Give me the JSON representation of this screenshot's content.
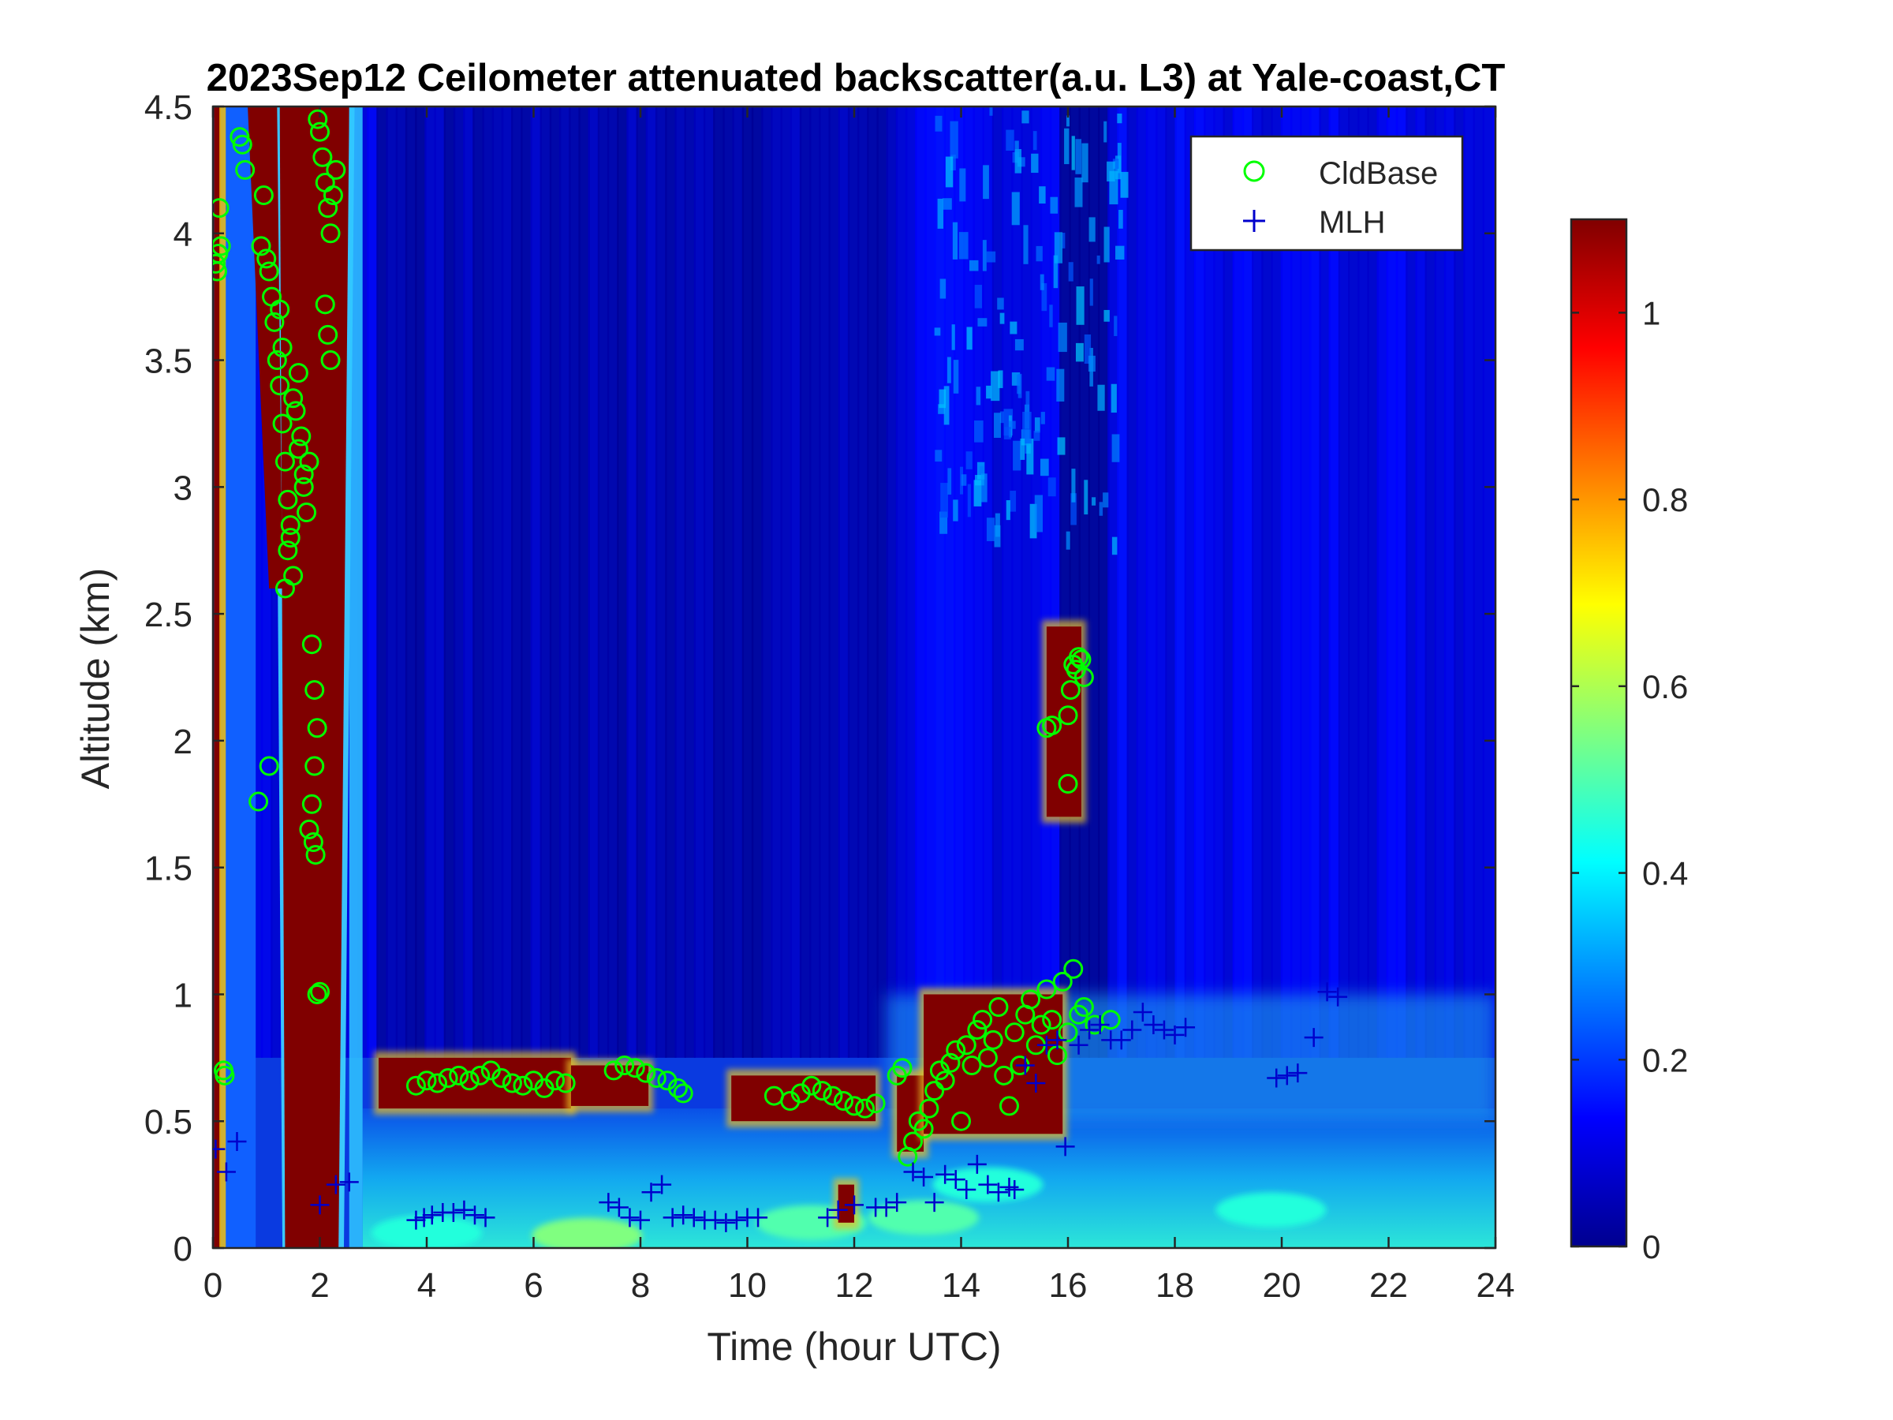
{
  "chart_data": {
    "type": "heatmap",
    "title": "2023Sep12 Ceilometer attenuated backscatter(a.u. L3) at Yale-coast,CT",
    "xlabel": "Time (hour UTC)",
    "ylabel": "Altitude (km)",
    "xlim": [
      0,
      24
    ],
    "ylim": [
      0,
      4.5
    ],
    "xticks": [
      0,
      2,
      4,
      6,
      8,
      10,
      12,
      14,
      16,
      18,
      20,
      22,
      24
    ],
    "xtick_labels": [
      "0",
      "2",
      "4",
      "6",
      "8",
      "10",
      "12",
      "14",
      "16",
      "18",
      "20",
      "22",
      "24"
    ],
    "yticks": [
      0,
      0.5,
      1,
      1.5,
      2,
      2.5,
      3,
      3.5,
      4,
      4.5
    ],
    "ytick_labels": [
      "0",
      "0.5",
      "1",
      "1.5",
      "2",
      "2.5",
      "3",
      "3.5",
      "4",
      "4.5"
    ],
    "colorbar": {
      "colormap": "jet",
      "clim": [
        0,
        1.1
      ],
      "ticks": [
        0,
        0.2,
        0.4,
        0.6,
        0.8,
        1
      ],
      "tick_labels": [
        "0",
        "0.2",
        "0.4",
        "0.6",
        "0.8",
        "1"
      ]
    },
    "legend": {
      "placement": "top-right",
      "entries": [
        {
          "label": "CldBase",
          "marker": "circle",
          "color": "#00ff00"
        },
        {
          "label": "MLH",
          "marker": "plus",
          "color": "#0000cc"
        }
      ]
    },
    "heatmap_features": [
      {
        "desc": "background aloft",
        "x": [
          0,
          24
        ],
        "y": [
          1.2,
          4.5
        ],
        "value": 0.12
      },
      {
        "desc": "clear night column",
        "x": [
          3,
          12.5
        ],
        "y": [
          0.8,
          4.5
        ],
        "value": 0.04
      },
      {
        "desc": "boundary layer",
        "x": [
          2.8,
          24
        ],
        "y": [
          0,
          0.55
        ],
        "value": 0.35
      },
      {
        "desc": "thick cloud column",
        "x": [
          1.2,
          2.6
        ],
        "y": [
          0,
          4.5
        ],
        "value": 1.1
      },
      {
        "desc": "edge cloud column",
        "x": [
          0,
          0.2
        ],
        "y": [
          0,
          4.5
        ],
        "value": 1.1
      },
      {
        "desc": "cloud layer",
        "x": [
          3.1,
          6.7
        ],
        "y": [
          0.55,
          0.75
        ],
        "value": 1.1
      },
      {
        "desc": "cloud layer",
        "x": [
          6.7,
          8.1
        ],
        "y": [
          0.55,
          0.7
        ],
        "value": 1.0
      },
      {
        "desc": "cloud layer",
        "x": [
          9.7,
          12.4
        ],
        "y": [
          0.5,
          0.7
        ],
        "value": 1.0
      },
      {
        "desc": "cloud layer",
        "x": [
          13.2,
          15.8
        ],
        "y": [
          0.4,
          1.05
        ],
        "value": 1.0
      },
      {
        "desc": "cloud layer",
        "x": [
          15.6,
          16.2
        ],
        "y": [
          1.7,
          2.45
        ],
        "value": 1.0
      }
    ],
    "series": [
      {
        "name": "CldBase",
        "marker": "circle",
        "color": "#00ff00",
        "x": [
          0.05,
          0.1,
          0.15,
          0.12,
          0.08,
          0.2,
          0.22,
          0.55,
          0.6,
          0.5,
          0.9,
          0.95,
          1.0,
          1.05,
          1.1,
          1.15,
          1.2,
          1.25,
          1.3,
          1.35,
          1.4,
          1.45,
          1.5,
          1.55,
          1.6,
          1.65,
          1.7,
          1.75,
          1.8,
          1.35,
          1.4,
          1.5,
          1.6,
          1.7,
          1.45,
          1.3,
          1.25,
          1.85,
          1.9,
          1.95,
          1.9,
          1.85,
          1.8,
          1.88,
          1.92,
          1.96,
          2.0,
          2.05,
          2.1,
          2.15,
          2.2,
          2.25,
          2.3,
          2.15,
          2.1,
          2.2,
          0.85,
          1.05,
          1.95,
          2.0,
          3.8,
          4.0,
          4.2,
          4.4,
          4.6,
          4.8,
          5.0,
          5.2,
          5.4,
          5.6,
          5.8,
          6.0,
          6.2,
          6.4,
          6.6,
          7.5,
          7.7,
          7.9,
          8.1,
          8.3,
          8.5,
          8.7,
          8.8,
          10.5,
          10.8,
          11.0,
          11.2,
          11.4,
          11.6,
          11.8,
          12.0,
          12.2,
          12.4,
          12.8,
          12.9,
          13.0,
          13.1,
          13.2,
          13.3,
          13.4,
          13.5,
          13.6,
          13.7,
          13.8,
          13.9,
          14.0,
          14.1,
          14.2,
          14.3,
          14.4,
          14.5,
          14.6,
          14.7,
          14.8,
          14.9,
          15.0,
          15.1,
          15.2,
          15.3,
          15.4,
          15.5,
          15.6,
          15.7,
          15.8,
          15.9,
          16.0,
          16.1,
          16.2,
          16.3,
          16.5,
          16.8,
          15.6,
          15.7,
          16.0,
          16.05,
          16.1,
          16.15,
          16.2,
          16.25,
          16.3,
          16.0
        ],
        "y": [
          3.88,
          3.92,
          3.95,
          4.1,
          3.85,
          0.7,
          0.68,
          4.35,
          4.25,
          4.38,
          3.95,
          4.15,
          3.9,
          3.85,
          3.75,
          3.65,
          3.5,
          3.4,
          3.25,
          3.1,
          2.95,
          2.8,
          2.65,
          3.3,
          3.45,
          3.2,
          3.05,
          2.9,
          3.1,
          2.6,
          2.75,
          3.35,
          3.15,
          3.0,
          2.85,
          3.55,
          3.7,
          2.38,
          2.2,
          2.05,
          1.9,
          1.75,
          1.65,
          1.6,
          1.55,
          4.45,
          4.4,
          4.3,
          4.2,
          4.1,
          4.0,
          4.15,
          4.25,
          3.6,
          3.72,
          3.5,
          1.76,
          1.9,
          1.0,
          1.01,
          0.64,
          0.66,
          0.65,
          0.67,
          0.68,
          0.66,
          0.68,
          0.7,
          0.67,
          0.65,
          0.64,
          0.66,
          0.63,
          0.66,
          0.65,
          0.7,
          0.72,
          0.71,
          0.69,
          0.67,
          0.66,
          0.63,
          0.61,
          0.6,
          0.58,
          0.61,
          0.64,
          0.62,
          0.6,
          0.58,
          0.56,
          0.55,
          0.57,
          0.68,
          0.71,
          0.36,
          0.42,
          0.5,
          0.47,
          0.55,
          0.62,
          0.7,
          0.66,
          0.73,
          0.78,
          0.5,
          0.8,
          0.72,
          0.86,
          0.9,
          0.75,
          0.82,
          0.95,
          0.68,
          0.56,
          0.85,
          0.72,
          0.92,
          0.98,
          0.8,
          0.88,
          1.02,
          0.9,
          0.76,
          1.05,
          0.85,
          1.1,
          0.92,
          0.95,
          0.88,
          0.9,
          2.05,
          2.06,
          2.1,
          2.2,
          2.3,
          2.28,
          2.33,
          2.32,
          2.25,
          1.83
        ]
      },
      {
        "name": "MLH",
        "marker": "plus",
        "color": "#0000cc",
        "x": [
          0.05,
          0.25,
          0.45,
          2.0,
          2.3,
          2.55,
          3.8,
          3.95,
          4.1,
          4.3,
          4.5,
          4.7,
          4.9,
          5.1,
          7.4,
          7.6,
          7.8,
          8.0,
          8.2,
          8.4,
          8.6,
          8.8,
          9.0,
          9.2,
          9.4,
          9.6,
          9.8,
          10.0,
          10.2,
          11.5,
          11.7,
          12.0,
          12.4,
          12.6,
          12.8,
          13.1,
          13.3,
          13.5,
          13.7,
          13.9,
          14.1,
          14.3,
          14.5,
          14.7,
          14.9,
          15.0,
          15.2,
          15.4,
          15.6,
          15.8,
          15.95,
          16.2,
          16.4,
          16.6,
          16.8,
          17.0,
          17.2,
          17.4,
          17.6,
          17.8,
          18.0,
          18.2,
          19.9,
          20.1,
          20.3,
          20.6,
          20.85,
          21.05
        ],
        "y": [
          0.39,
          0.3,
          0.42,
          0.17,
          0.25,
          0.26,
          0.11,
          0.12,
          0.13,
          0.14,
          0.14,
          0.15,
          0.13,
          0.12,
          0.18,
          0.16,
          0.12,
          0.11,
          0.22,
          0.25,
          0.12,
          0.13,
          0.12,
          0.11,
          0.11,
          0.1,
          0.11,
          0.12,
          0.12,
          0.12,
          0.15,
          0.17,
          0.16,
          0.16,
          0.18,
          0.3,
          0.28,
          0.18,
          0.29,
          0.27,
          0.23,
          0.33,
          0.25,
          0.22,
          0.24,
          0.23,
          0.72,
          0.65,
          0.8,
          0.82,
          0.4,
          0.8,
          0.86,
          0.88,
          0.82,
          0.82,
          0.86,
          0.93,
          0.88,
          0.86,
          0.84,
          0.87,
          0.67,
          0.68,
          0.69,
          0.83,
          1.01,
          0.99
        ]
      }
    ]
  }
}
